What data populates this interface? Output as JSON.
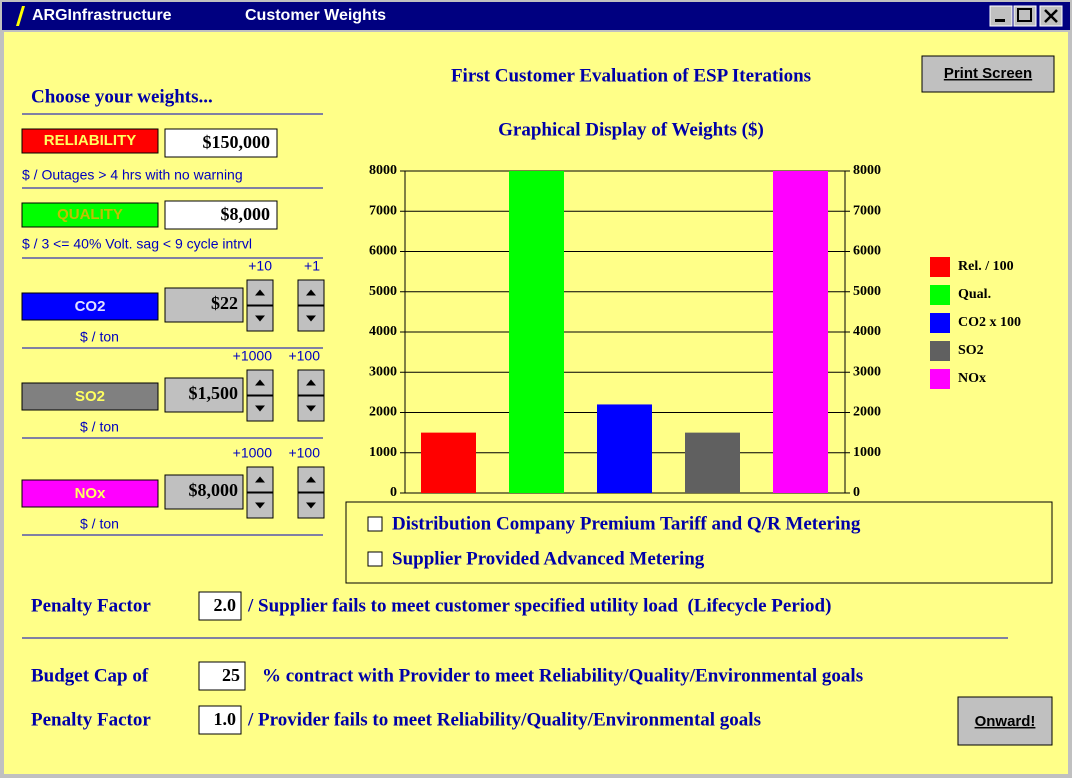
{
  "window": {
    "title": "ARGInfrastructure",
    "subtitle": "Customer Weights"
  },
  "print_button": "Print Screen",
  "heading": "First Customer Evaluation of ESP Iterations",
  "weights": {
    "title": "Choose your weights...",
    "reliability": {
      "label": "RELIABILITY",
      "value": "$150,000",
      "caption": "$ / Outages > 4 hrs with no warning"
    },
    "quality": {
      "label": "QUALITY",
      "value": "$8,000",
      "caption": "$ / 3 <= 40% Volt. sag < 9 cycle intrvl"
    },
    "co2": {
      "label": "CO2",
      "value": "$22",
      "caption": "$ / ton",
      "step_large": "+10",
      "step_small": "+1"
    },
    "so2": {
      "label": "SO2",
      "value": "$1,500",
      "caption": "$ / ton",
      "step_large": "+1000",
      "step_small": "+100"
    },
    "nox": {
      "label": "NOx",
      "value": "$8,000",
      "caption": "$ / ton",
      "step_large": "+1000",
      "step_small": "+100"
    }
  },
  "chart_data": {
    "type": "bar",
    "title": "Graphical Display of Weights ($)",
    "categories": [
      "Rel. / 100",
      "Qual.",
      "CO2 x 100",
      "SO2",
      "NOx"
    ],
    "values": [
      1500,
      8000,
      2200,
      1500,
      8000
    ],
    "colors": [
      "#ff0000",
      "#00ff00",
      "#0000ff",
      "#606060",
      "#ff00ff"
    ],
    "ylim": [
      0,
      8000
    ],
    "yticks": [
      0,
      1000,
      2000,
      3000,
      4000,
      5000,
      6000,
      7000,
      8000
    ],
    "y2lim": [
      0,
      8000
    ],
    "y2ticks": [
      0,
      1000,
      2000,
      3000,
      4000,
      5000,
      6000,
      7000,
      8000
    ],
    "grid": true
  },
  "options": [
    "Distribution Company Premium Tariff and Q/R Metering",
    "Supplier Provided Advanced Metering"
  ],
  "supplier_penalty": {
    "label": "Penalty Factor",
    "value": "2.0",
    "description": "/ Supplier fails to meet customer specified utility load  (Lifecycle Period)"
  },
  "budget_cap": {
    "label": "Budget Cap of",
    "value": "25",
    "description": "% contract with Provider to meet Reliability/Quality/Environmental goals"
  },
  "provider_penalty": {
    "label": "Penalty Factor",
    "value": "1.0",
    "description": "/ Provider fails to meet Reliability/Quality/Environmental goals"
  },
  "onward_button": "Onward!"
}
